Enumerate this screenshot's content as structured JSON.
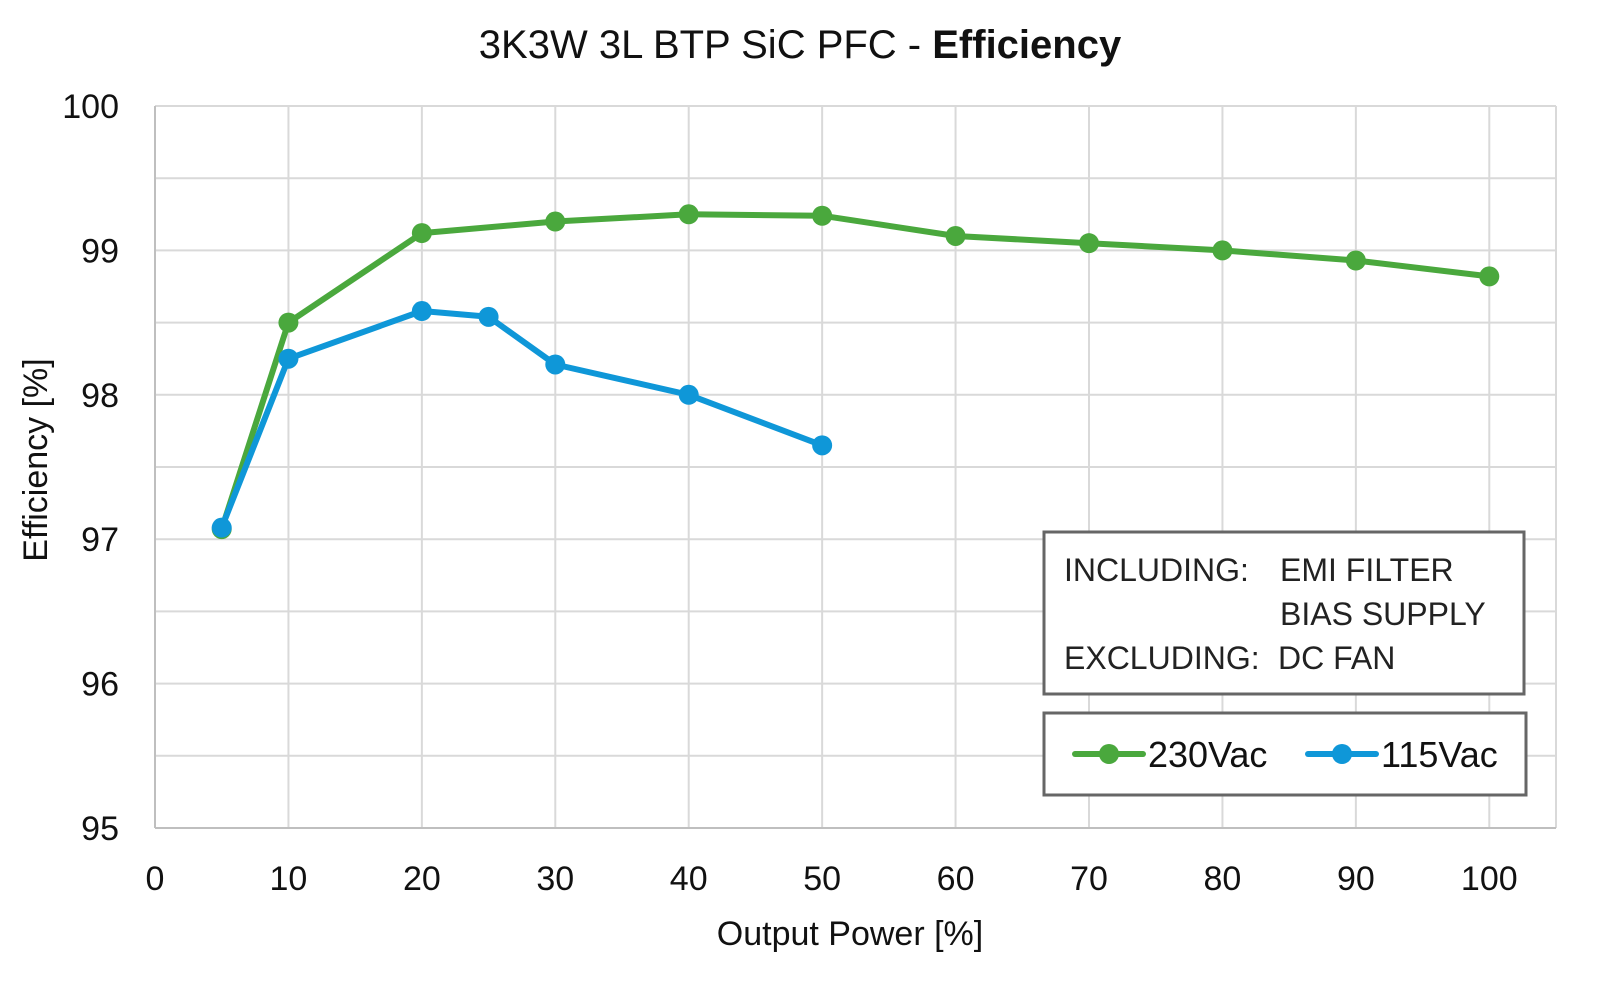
{
  "chart_data": {
    "type": "line",
    "title": "3K3W 3L BTP SiC PFC - ",
    "title_bold": "Efficiency",
    "xlabel": "Output Power [%]",
    "ylabel": "Efficiency [%]",
    "xlim": [
      0,
      105
    ],
    "ylim": [
      95,
      100
    ],
    "x_ticks": [
      "0",
      "10",
      "20",
      "30",
      "40",
      "50",
      "60",
      "70",
      "80",
      "90",
      "100"
    ],
    "y_ticks": [
      "95",
      "96",
      "97",
      "98",
      "99",
      "100"
    ],
    "grid": true,
    "legend_position": "bottom-right",
    "series": [
      {
        "name": "230Vac",
        "color": "#4aa83d",
        "x": [
          5,
          10,
          20,
          30,
          40,
          50,
          60,
          70,
          80,
          90,
          100
        ],
        "y": [
          97.07,
          98.5,
          99.12,
          99.2,
          99.25,
          99.24,
          99.1,
          99.05,
          99.0,
          98.93,
          98.82
        ]
      },
      {
        "name": "115Vac",
        "color": "#0f97d8",
        "x": [
          5,
          10,
          20,
          25,
          30,
          40,
          50
        ],
        "y": [
          97.08,
          98.25,
          98.58,
          98.54,
          98.21,
          98.0,
          97.65
        ]
      }
    ],
    "annotation": {
      "line1_label": "INCLUDING:",
      "line1_value": "EMI FILTER",
      "line2_value": "BIAS SUPPLY",
      "line3_label": "EXCLUDING:",
      "line3_value": "DC FAN"
    }
  }
}
